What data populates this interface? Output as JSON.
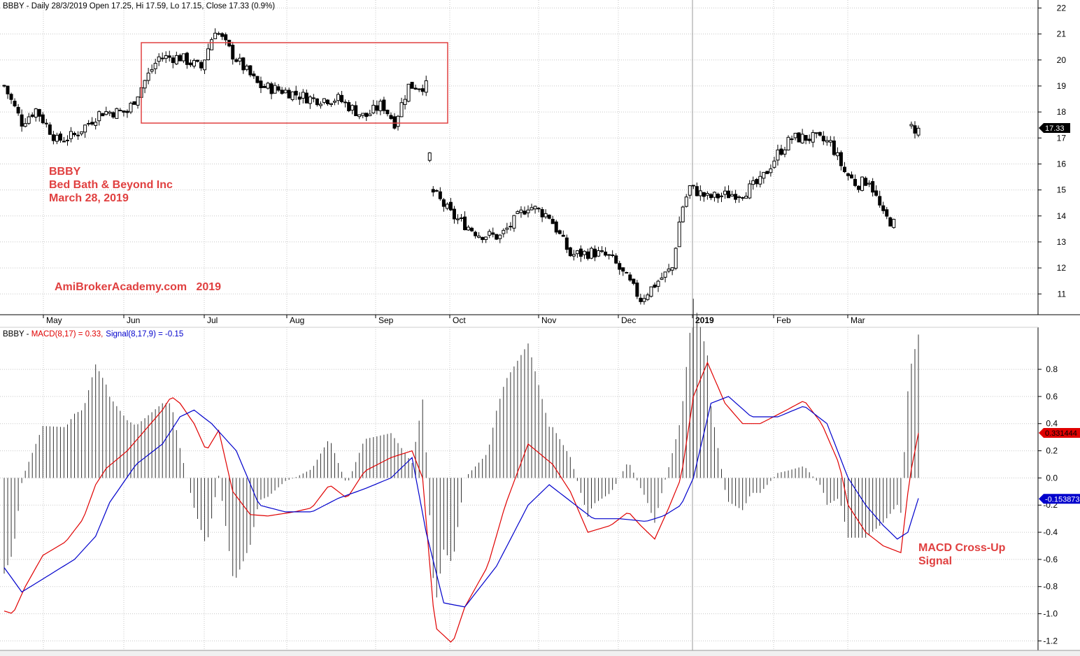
{
  "chart_data": [
    {
      "type": "candlestick",
      "header": "BBBY - Daily 28/3/2019 Open 17.25, Hi 17.59, Lo 17.15, Close 17.33 (0.9%)",
      "ylim": [
        10.2,
        22.2
      ],
      "y_ticks": [
        "11",
        "12",
        "13",
        "14",
        "15",
        "16",
        "17",
        "18",
        "19",
        "20",
        "21",
        "22"
      ],
      "x_ticks": [
        "May",
        "Jun",
        "Jul",
        "Aug",
        "Sep",
        "Oct",
        "Nov",
        "Dec",
        "2019",
        "Feb",
        "Mar"
      ],
      "last_price_label": "17.33",
      "annotations": {
        "title_lines": [
          "BBBY",
          "Bed Bath & Beyond Inc",
          "March 28, 2019"
        ],
        "watermark": "AmiBrokerAcademy.com   2019"
      },
      "anchors": [
        [
          0,
          19.0
        ],
        [
          10,
          17.6
        ],
        [
          18,
          18.1
        ],
        [
          30,
          16.9
        ],
        [
          40,
          17.1
        ],
        [
          55,
          18.0
        ],
        [
          70,
          18.0
        ],
        [
          80,
          19.2
        ],
        [
          88,
          20.1
        ],
        [
          100,
          20.1
        ],
        [
          112,
          19.7
        ],
        [
          120,
          21.2
        ],
        [
          130,
          20.2
        ],
        [
          145,
          19.0
        ],
        [
          160,
          18.8
        ],
        [
          175,
          18.5
        ],
        [
          190,
          18.5
        ],
        [
          205,
          17.8
        ],
        [
          215,
          18.3
        ],
        [
          222,
          17.6
        ],
        [
          230,
          19.0
        ],
        [
          240,
          19.0
        ],
        [
          243,
          15.0
        ],
        [
          255,
          14.0
        ],
        [
          270,
          13.3
        ],
        [
          282,
          13.2
        ],
        [
          298,
          14.4
        ],
        [
          310,
          14.0
        ],
        [
          322,
          12.5
        ],
        [
          335,
          12.6
        ],
        [
          345,
          12.4
        ],
        [
          355,
          11.5
        ],
        [
          362,
          10.8
        ],
        [
          372,
          11.5
        ],
        [
          380,
          12.0
        ],
        [
          385,
          14.2
        ],
        [
          390,
          15.1
        ],
        [
          400,
          14.7
        ],
        [
          410,
          14.8
        ],
        [
          420,
          14.9
        ],
        [
          430,
          15.3
        ],
        [
          440,
          16.4
        ],
        [
          448,
          17.0
        ],
        [
          460,
          17.0
        ],
        [
          470,
          16.8
        ],
        [
          478,
          15.7
        ],
        [
          485,
          15.2
        ],
        [
          492,
          15.4
        ],
        [
          500,
          14.0
        ],
        [
          506,
          13.7
        ],
        [
          510,
          13.8
        ],
        [
          516,
          17.4
        ],
        [
          520,
          17.3
        ]
      ],
      "gap_ranges": [
        [
          506.5,
          515.5
        ]
      ],
      "last_index": 520
    },
    {
      "type": "line",
      "header_prefix": "BBBY - ",
      "macd_label": "MACD(8,17) = 0.33,",
      "signal_label": "Signal(8,17,9) = -0.15",
      "ylim": [
        -1.27,
        0.96
      ],
      "y_ticks": [
        "-1.2",
        "-1.0",
        "-0.8",
        "-0.6",
        "-0.4",
        "-0.2",
        "0.0",
        "0.2",
        "0.4",
        "0.6",
        "0.8"
      ],
      "macd_value_label": "0.331444",
      "signal_value_label": "-0.153873",
      "annotation_lines": [
        "MACD Cross-Up",
        "Signal"
      ],
      "series": [
        {
          "name": "MACD",
          "color": "#e00000",
          "points": [
            [
              0,
              -0.98
            ],
            [
              5,
              -1.0
            ],
            [
              12,
              -0.8
            ],
            [
              22,
              -0.57
            ],
            [
              35,
              -0.47
            ],
            [
              45,
              -0.3
            ],
            [
              52,
              -0.05
            ],
            [
              58,
              0.07
            ],
            [
              70,
              0.2
            ],
            [
              80,
              0.35
            ],
            [
              90,
              0.5
            ],
            [
              95,
              0.6
            ],
            [
              100,
              0.55
            ],
            [
              108,
              0.4
            ],
            [
              115,
              0.2
            ],
            [
              122,
              0.35
            ],
            [
              130,
              -0.1
            ],
            [
              140,
              -0.27
            ],
            [
              150,
              -0.28
            ],
            [
              165,
              -0.25
            ],
            [
              175,
              -0.22
            ],
            [
              185,
              -0.05
            ],
            [
              195,
              -0.15
            ],
            [
              205,
              0.05
            ],
            [
              220,
              0.15
            ],
            [
              232,
              0.2
            ],
            [
              238,
              0.0
            ],
            [
              245,
              -1.1
            ],
            [
              255,
              -1.22
            ],
            [
              262,
              -0.95
            ],
            [
              275,
              -0.65
            ],
            [
              285,
              -0.2
            ],
            [
              298,
              0.25
            ],
            [
              312,
              0.1
            ],
            [
              322,
              -0.1
            ],
            [
              332,
              -0.4
            ],
            [
              345,
              -0.35
            ],
            [
              355,
              -0.25
            ],
            [
              362,
              -0.35
            ],
            [
              370,
              -0.45
            ],
            [
              378,
              -0.22
            ],
            [
              385,
              0.0
            ],
            [
              392,
              0.6
            ],
            [
              400,
              0.85
            ],
            [
              410,
              0.55
            ],
            [
              420,
              0.4
            ],
            [
              430,
              0.4
            ],
            [
              445,
              0.5
            ],
            [
              455,
              0.57
            ],
            [
              465,
              0.4
            ],
            [
              475,
              0.1
            ],
            [
              480,
              -0.2
            ],
            [
              490,
              -0.4
            ],
            [
              500,
              -0.5
            ],
            [
              510,
              -0.55
            ],
            [
              515,
              0.0
            ],
            [
              520,
              0.33
            ]
          ]
        },
        {
          "name": "Signal",
          "color": "#0000cc",
          "points": [
            [
              0,
              -0.66
            ],
            [
              10,
              -0.84
            ],
            [
              20,
              -0.76
            ],
            [
              40,
              -0.6
            ],
            [
              52,
              -0.43
            ],
            [
              60,
              -0.18
            ],
            [
              75,
              0.1
            ],
            [
              90,
              0.25
            ],
            [
              100,
              0.45
            ],
            [
              108,
              0.5
            ],
            [
              118,
              0.4
            ],
            [
              125,
              0.3
            ],
            [
              132,
              0.2
            ],
            [
              145,
              -0.2
            ],
            [
              160,
              -0.25
            ],
            [
              175,
              -0.25
            ],
            [
              190,
              -0.15
            ],
            [
              205,
              -0.08
            ],
            [
              220,
              0.0
            ],
            [
              232,
              0.15
            ],
            [
              240,
              -0.4
            ],
            [
              250,
              -0.92
            ],
            [
              262,
              -0.95
            ],
            [
              280,
              -0.65
            ],
            [
              298,
              -0.2
            ],
            [
              310,
              -0.05
            ],
            [
              320,
              -0.15
            ],
            [
              335,
              -0.3
            ],
            [
              350,
              -0.3
            ],
            [
              365,
              -0.32
            ],
            [
              375,
              -0.28
            ],
            [
              385,
              -0.2
            ],
            [
              392,
              0.0
            ],
            [
              402,
              0.55
            ],
            [
              412,
              0.6
            ],
            [
              425,
              0.45
            ],
            [
              440,
              0.45
            ],
            [
              455,
              0.53
            ],
            [
              468,
              0.4
            ],
            [
              480,
              0.0
            ],
            [
              490,
              -0.2
            ],
            [
              500,
              -0.35
            ],
            [
              508,
              -0.45
            ],
            [
              514,
              -0.4
            ],
            [
              520,
              -0.15
            ]
          ]
        }
      ]
    }
  ]
}
